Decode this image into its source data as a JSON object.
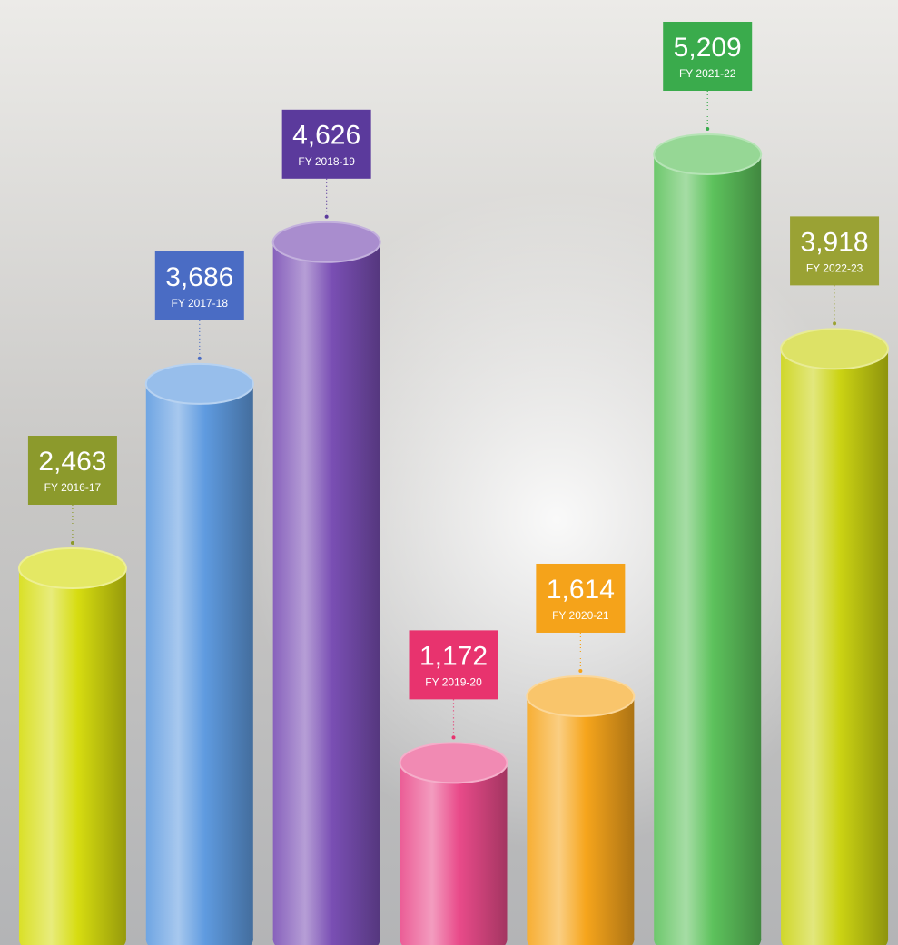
{
  "chart_data": {
    "type": "bar",
    "categories": [
      "FY 2016-17",
      "FY 2017-18",
      "FY 2018-19",
      "FY 2019-20",
      "FY 2020-21",
      "FY 2021-22",
      "FY 2022-23"
    ],
    "values": [
      2463,
      3686,
      4626,
      1172,
      1614,
      5209,
      3918
    ],
    "value_labels": [
      "2,463",
      "3,686",
      "4,626",
      "1,172",
      "1,614",
      "5,209",
      "3,918"
    ],
    "colors": [
      "#d6dc10",
      "#5f9be0",
      "#7a4fb4",
      "#e94b8a",
      "#f6a51c",
      "#5dc25c",
      "#cbd313"
    ],
    "label_colors": [
      "#8c9a2c",
      "#4a6cc4",
      "#5b3a9c",
      "#e8336e",
      "#f5a31a",
      "#3aab4c",
      "#9aa234"
    ]
  }
}
